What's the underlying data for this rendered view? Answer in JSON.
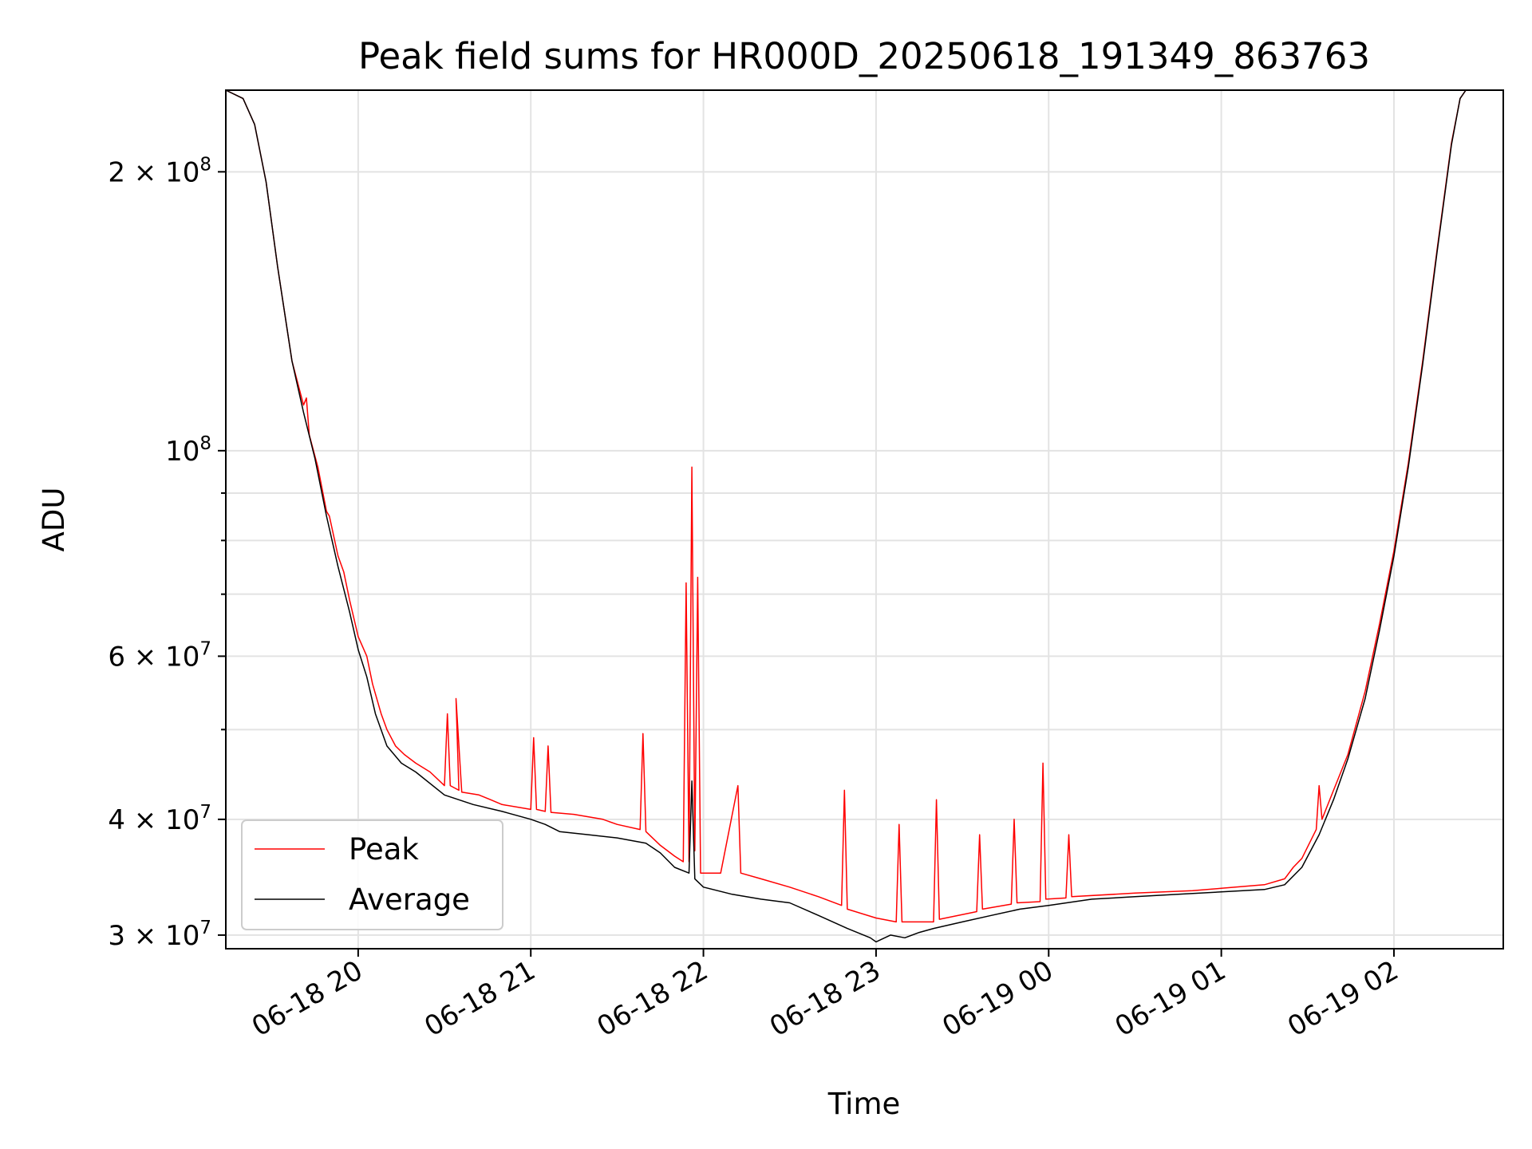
{
  "chart_data": {
    "type": "line",
    "title": "Peak field sums for HR000D_20250618_191349_863763",
    "xlabel": "Time",
    "ylabel": "ADU",
    "yscale": "log",
    "ylim": [
      29000000,
      245000000
    ],
    "xlim": [
      "2025-06-18 19:14",
      "2025-06-19 02:38"
    ],
    "grid": true,
    "legend_position": "lower-left",
    "x_ticks": [
      {
        "t": "2025-06-18 20:00",
        "label": "06-18 20"
      },
      {
        "t": "2025-06-18 21:00",
        "label": "06-18 21"
      },
      {
        "t": "2025-06-18 22:00",
        "label": "06-18 22"
      },
      {
        "t": "2025-06-18 23:00",
        "label": "06-18 23"
      },
      {
        "t": "2025-06-19 00:00",
        "label": "06-19 00"
      },
      {
        "t": "2025-06-19 01:00",
        "label": "06-19 01"
      },
      {
        "t": "2025-06-19 02:00",
        "label": "06-19 02"
      }
    ],
    "y_ticks": [
      {
        "v": 30000000,
        "base": "3 × 10",
        "exp": "7"
      },
      {
        "v": 40000000,
        "base": "4 × 10",
        "exp": "7"
      },
      {
        "v": 60000000,
        "base": "6 × 10",
        "exp": "7"
      },
      {
        "v": 100000000,
        "base": "10",
        "exp": "8"
      },
      {
        "v": 200000000,
        "base": "2 × 10",
        "exp": "8"
      }
    ],
    "y_minor_ticks": [
      50000000,
      70000000,
      80000000,
      90000000
    ],
    "series": [
      {
        "name": "Peak",
        "color": "#ff0000",
        "points": [
          [
            "2025-06-18 19:14",
            245000000
          ],
          [
            "2025-06-18 19:20",
            240000000
          ],
          [
            "2025-06-18 19:24",
            225000000
          ],
          [
            "2025-06-18 19:28",
            195000000
          ],
          [
            "2025-06-18 19:32",
            158000000
          ],
          [
            "2025-06-18 19:37",
            125000000
          ],
          [
            "2025-06-18 19:41",
            112000000
          ],
          [
            "2025-06-18 19:42",
            114000000
          ],
          [
            "2025-06-18 19:43",
            104000000
          ],
          [
            "2025-06-18 19:46",
            96000000
          ],
          [
            "2025-06-18 19:49",
            86000000
          ],
          [
            "2025-06-18 19:50",
            85000000
          ],
          [
            "2025-06-18 19:53",
            77000000
          ],
          [
            "2025-06-18 19:55",
            74000000
          ],
          [
            "2025-06-18 19:57",
            69000000
          ],
          [
            "2025-06-18 20:00",
            63000000
          ],
          [
            "2025-06-18 20:03",
            60000000
          ],
          [
            "2025-06-18 20:05",
            56000000
          ],
          [
            "2025-06-18 20:08",
            52000000
          ],
          [
            "2025-06-18 20:10",
            50000000
          ],
          [
            "2025-06-18 20:13",
            48000000
          ],
          [
            "2025-06-18 20:16",
            47000000
          ],
          [
            "2025-06-18 20:20",
            46000000
          ],
          [
            "2025-06-18 20:25",
            45000000
          ],
          [
            "2025-06-18 20:30",
            43500000
          ],
          [
            "2025-06-18 20:31",
            52000000
          ],
          [
            "2025-06-18 20:32",
            43500000
          ],
          [
            "2025-06-18 20:35",
            43000000
          ],
          [
            "2025-06-18 20:34",
            54000000
          ],
          [
            "2025-06-18 20:36",
            42800000
          ],
          [
            "2025-06-18 20:42",
            42500000
          ],
          [
            "2025-06-18 20:46",
            42000000
          ],
          [
            "2025-06-18 20:50",
            41500000
          ],
          [
            "2025-06-18 21:00",
            41000000
          ],
          [
            "2025-06-18 21:01",
            49000000
          ],
          [
            "2025-06-18 21:02",
            41000000
          ],
          [
            "2025-06-18 21:05",
            40800000
          ],
          [
            "2025-06-18 21:06",
            48000000
          ],
          [
            "2025-06-18 21:07",
            40700000
          ],
          [
            "2025-06-18 21:15",
            40500000
          ],
          [
            "2025-06-18 21:25",
            40000000
          ],
          [
            "2025-06-18 21:30",
            39500000
          ],
          [
            "2025-06-18 21:38",
            39000000
          ],
          [
            "2025-06-18 21:39",
            49500000
          ],
          [
            "2025-06-18 21:40",
            38800000
          ],
          [
            "2025-06-18 21:45",
            37500000
          ],
          [
            "2025-06-18 21:50",
            36500000
          ],
          [
            "2025-06-18 21:53",
            36000000
          ],
          [
            "2025-06-18 21:54",
            72000000
          ],
          [
            "2025-06-18 21:55",
            36000000
          ],
          [
            "2025-06-18 21:56",
            96000000
          ],
          [
            "2025-06-18 21:57",
            37000000
          ],
          [
            "2025-06-18 21:58",
            73000000
          ],
          [
            "2025-06-18 21:59",
            35000000
          ],
          [
            "2025-06-18 22:00",
            35000000
          ],
          [
            "2025-06-18 22:06",
            35000000
          ],
          [
            "2025-06-18 22:12",
            43500000
          ],
          [
            "2025-06-18 22:13",
            35000000
          ],
          [
            "2025-06-18 22:20",
            34500000
          ],
          [
            "2025-06-18 22:30",
            33800000
          ],
          [
            "2025-06-18 22:40",
            33000000
          ],
          [
            "2025-06-18 22:48",
            32300000
          ],
          [
            "2025-06-18 22:49",
            43000000
          ],
          [
            "2025-06-18 22:50",
            32000000
          ],
          [
            "2025-06-18 23:00",
            31300000
          ],
          [
            "2025-06-18 23:07",
            31000000
          ],
          [
            "2025-06-18 23:08",
            39500000
          ],
          [
            "2025-06-18 23:09",
            31000000
          ],
          [
            "2025-06-18 23:20",
            31000000
          ],
          [
            "2025-06-18 23:21",
            42000000
          ],
          [
            "2025-06-18 23:22",
            31200000
          ],
          [
            "2025-06-18 23:35",
            31800000
          ],
          [
            "2025-06-18 23:36",
            38500000
          ],
          [
            "2025-06-18 23:37",
            32000000
          ],
          [
            "2025-06-18 23:47",
            32400000
          ],
          [
            "2025-06-18 23:48",
            40000000
          ],
          [
            "2025-06-18 23:49",
            32500000
          ],
          [
            "2025-06-18 23:57",
            32600000
          ],
          [
            "2025-06-18 23:58",
            46000000
          ],
          [
            "2025-06-18 23:59",
            32800000
          ],
          [
            "2025-06-19 00:06",
            32900000
          ],
          [
            "2025-06-19 00:07",
            38500000
          ],
          [
            "2025-06-19 00:08",
            33000000
          ],
          [
            "2025-06-19 00:30",
            33300000
          ],
          [
            "2025-06-19 00:50",
            33500000
          ],
          [
            "2025-06-19 01:00",
            33700000
          ],
          [
            "2025-06-19 01:15",
            34000000
          ],
          [
            "2025-06-19 01:22",
            34500000
          ],
          [
            "2025-06-19 01:25",
            35500000
          ],
          [
            "2025-06-19 01:28",
            36300000
          ],
          [
            "2025-06-19 01:33",
            39000000
          ],
          [
            "2025-06-19 01:34",
            43500000
          ],
          [
            "2025-06-19 01:35",
            40000000
          ],
          [
            "2025-06-19 01:39",
            43000000
          ],
          [
            "2025-06-19 01:44",
            47000000
          ],
          [
            "2025-06-19 01:50",
            55000000
          ],
          [
            "2025-06-19 01:55",
            65000000
          ],
          [
            "2025-06-19 02:00",
            78000000
          ],
          [
            "2025-06-19 02:05",
            97000000
          ],
          [
            "2025-06-19 02:10",
            125000000
          ],
          [
            "2025-06-19 02:15",
            165000000
          ],
          [
            "2025-06-19 02:20",
            215000000
          ],
          [
            "2025-06-19 02:23",
            240000000
          ],
          [
            "2025-06-19 02:25",
            245000000
          ]
        ]
      },
      {
        "name": "Average",
        "color": "#000000",
        "points": [
          [
            "2025-06-18 19:14",
            245000000
          ],
          [
            "2025-06-18 19:20",
            240000000
          ],
          [
            "2025-06-18 19:24",
            225000000
          ],
          [
            "2025-06-18 19:28",
            195000000
          ],
          [
            "2025-06-18 19:32",
            158000000
          ],
          [
            "2025-06-18 19:37",
            125000000
          ],
          [
            "2025-06-18 19:41",
            110000000
          ],
          [
            "2025-06-18 19:45",
            98000000
          ],
          [
            "2025-06-18 19:49",
            85000000
          ],
          [
            "2025-06-18 19:53",
            75000000
          ],
          [
            "2025-06-18 19:57",
            67000000
          ],
          [
            "2025-06-18 20:00",
            61000000
          ],
          [
            "2025-06-18 20:03",
            57000000
          ],
          [
            "2025-06-18 20:06",
            52000000
          ],
          [
            "2025-06-18 20:10",
            48000000
          ],
          [
            "2025-06-18 20:15",
            46000000
          ],
          [
            "2025-06-18 20:20",
            45000000
          ],
          [
            "2025-06-18 20:30",
            42500000
          ],
          [
            "2025-06-18 20:40",
            41500000
          ],
          [
            "2025-06-18 20:50",
            40800000
          ],
          [
            "2025-06-18 21:00",
            40000000
          ],
          [
            "2025-06-18 21:05",
            39500000
          ],
          [
            "2025-06-18 21:10",
            38800000
          ],
          [
            "2025-06-18 21:20",
            38500000
          ],
          [
            "2025-06-18 21:30",
            38200000
          ],
          [
            "2025-06-18 21:40",
            37700000
          ],
          [
            "2025-06-18 21:45",
            36800000
          ],
          [
            "2025-06-18 21:50",
            35500000
          ],
          [
            "2025-06-18 21:55",
            35000000
          ],
          [
            "2025-06-18 21:56",
            44000000
          ],
          [
            "2025-06-18 21:57",
            34500000
          ],
          [
            "2025-06-18 22:00",
            33800000
          ],
          [
            "2025-06-18 22:10",
            33200000
          ],
          [
            "2025-06-18 22:20",
            32800000
          ],
          [
            "2025-06-18 22:30",
            32500000
          ],
          [
            "2025-06-18 22:40",
            31500000
          ],
          [
            "2025-06-18 22:50",
            30500000
          ],
          [
            "2025-06-18 22:58",
            29800000
          ],
          [
            "2025-06-18 23:00",
            29500000
          ],
          [
            "2025-06-18 23:05",
            30000000
          ],
          [
            "2025-06-18 23:10",
            29800000
          ],
          [
            "2025-06-18 23:15",
            30200000
          ],
          [
            "2025-06-18 23:20",
            30500000
          ],
          [
            "2025-06-18 23:30",
            31000000
          ],
          [
            "2025-06-18 23:40",
            31500000
          ],
          [
            "2025-06-18 23:50",
            32000000
          ],
          [
            "2025-06-19 00:00",
            32300000
          ],
          [
            "2025-06-19 00:15",
            32800000
          ],
          [
            "2025-06-19 00:30",
            33000000
          ],
          [
            "2025-06-19 00:45",
            33200000
          ],
          [
            "2025-06-19 01:00",
            33400000
          ],
          [
            "2025-06-19 01:15",
            33600000
          ],
          [
            "2025-06-19 01:22",
            34000000
          ],
          [
            "2025-06-19 01:28",
            35500000
          ],
          [
            "2025-06-19 01:34",
            38500000
          ],
          [
            "2025-06-19 01:39",
            42000000
          ],
          [
            "2025-06-19 01:44",
            46500000
          ],
          [
            "2025-06-19 01:50",
            54000000
          ],
          [
            "2025-06-19 01:55",
            64000000
          ],
          [
            "2025-06-19 02:00",
            77000000
          ],
          [
            "2025-06-19 02:05",
            96000000
          ],
          [
            "2025-06-19 02:10",
            124000000
          ],
          [
            "2025-06-19 02:15",
            164000000
          ],
          [
            "2025-06-19 02:20",
            214000000
          ],
          [
            "2025-06-19 02:23",
            240000000
          ],
          [
            "2025-06-19 02:25",
            245000000
          ]
        ]
      }
    ]
  }
}
